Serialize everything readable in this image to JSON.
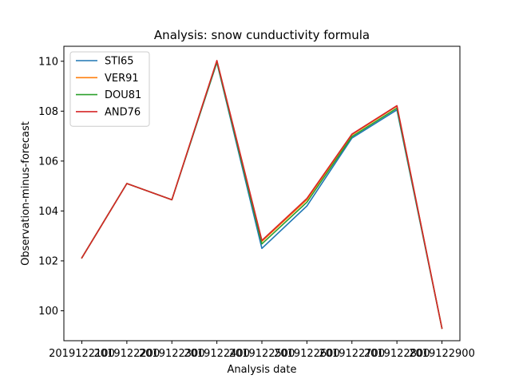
{
  "chart_data": {
    "type": "line",
    "title": "Analysis: snow cunductivity formula",
    "xlabel": "Analysis date",
    "ylabel": "Observation-minus-forecast",
    "x": [
      "2019122100",
      "2019122200",
      "2019122300",
      "2019122400",
      "2019122500",
      "2019122600",
      "2019122700",
      "2019122800",
      "2019122900"
    ],
    "ylim": [
      98.8,
      110.6
    ],
    "yticks": [
      100,
      102,
      104,
      106,
      108,
      110
    ],
    "grid": false,
    "legend": "top-left",
    "series": [
      {
        "name": "STI65",
        "color": "#1f77b4",
        "values": [
          102.12,
          105.1,
          104.45,
          109.95,
          102.5,
          104.2,
          106.92,
          108.05,
          99.3
        ]
      },
      {
        "name": "VER91",
        "color": "#ff7f0e",
        "values": [
          102.12,
          105.1,
          104.45,
          110.02,
          102.78,
          104.45,
          107.05,
          108.2,
          99.3
        ]
      },
      {
        "name": "DOU81",
        "color": "#2ca02c",
        "values": [
          102.12,
          105.1,
          104.45,
          109.97,
          102.68,
          104.35,
          106.98,
          108.12,
          99.3
        ]
      },
      {
        "name": "AND76",
        "color": "#d62728",
        "values": [
          102.12,
          105.1,
          104.45,
          110.03,
          102.82,
          104.5,
          107.08,
          108.22,
          99.3
        ]
      }
    ]
  }
}
